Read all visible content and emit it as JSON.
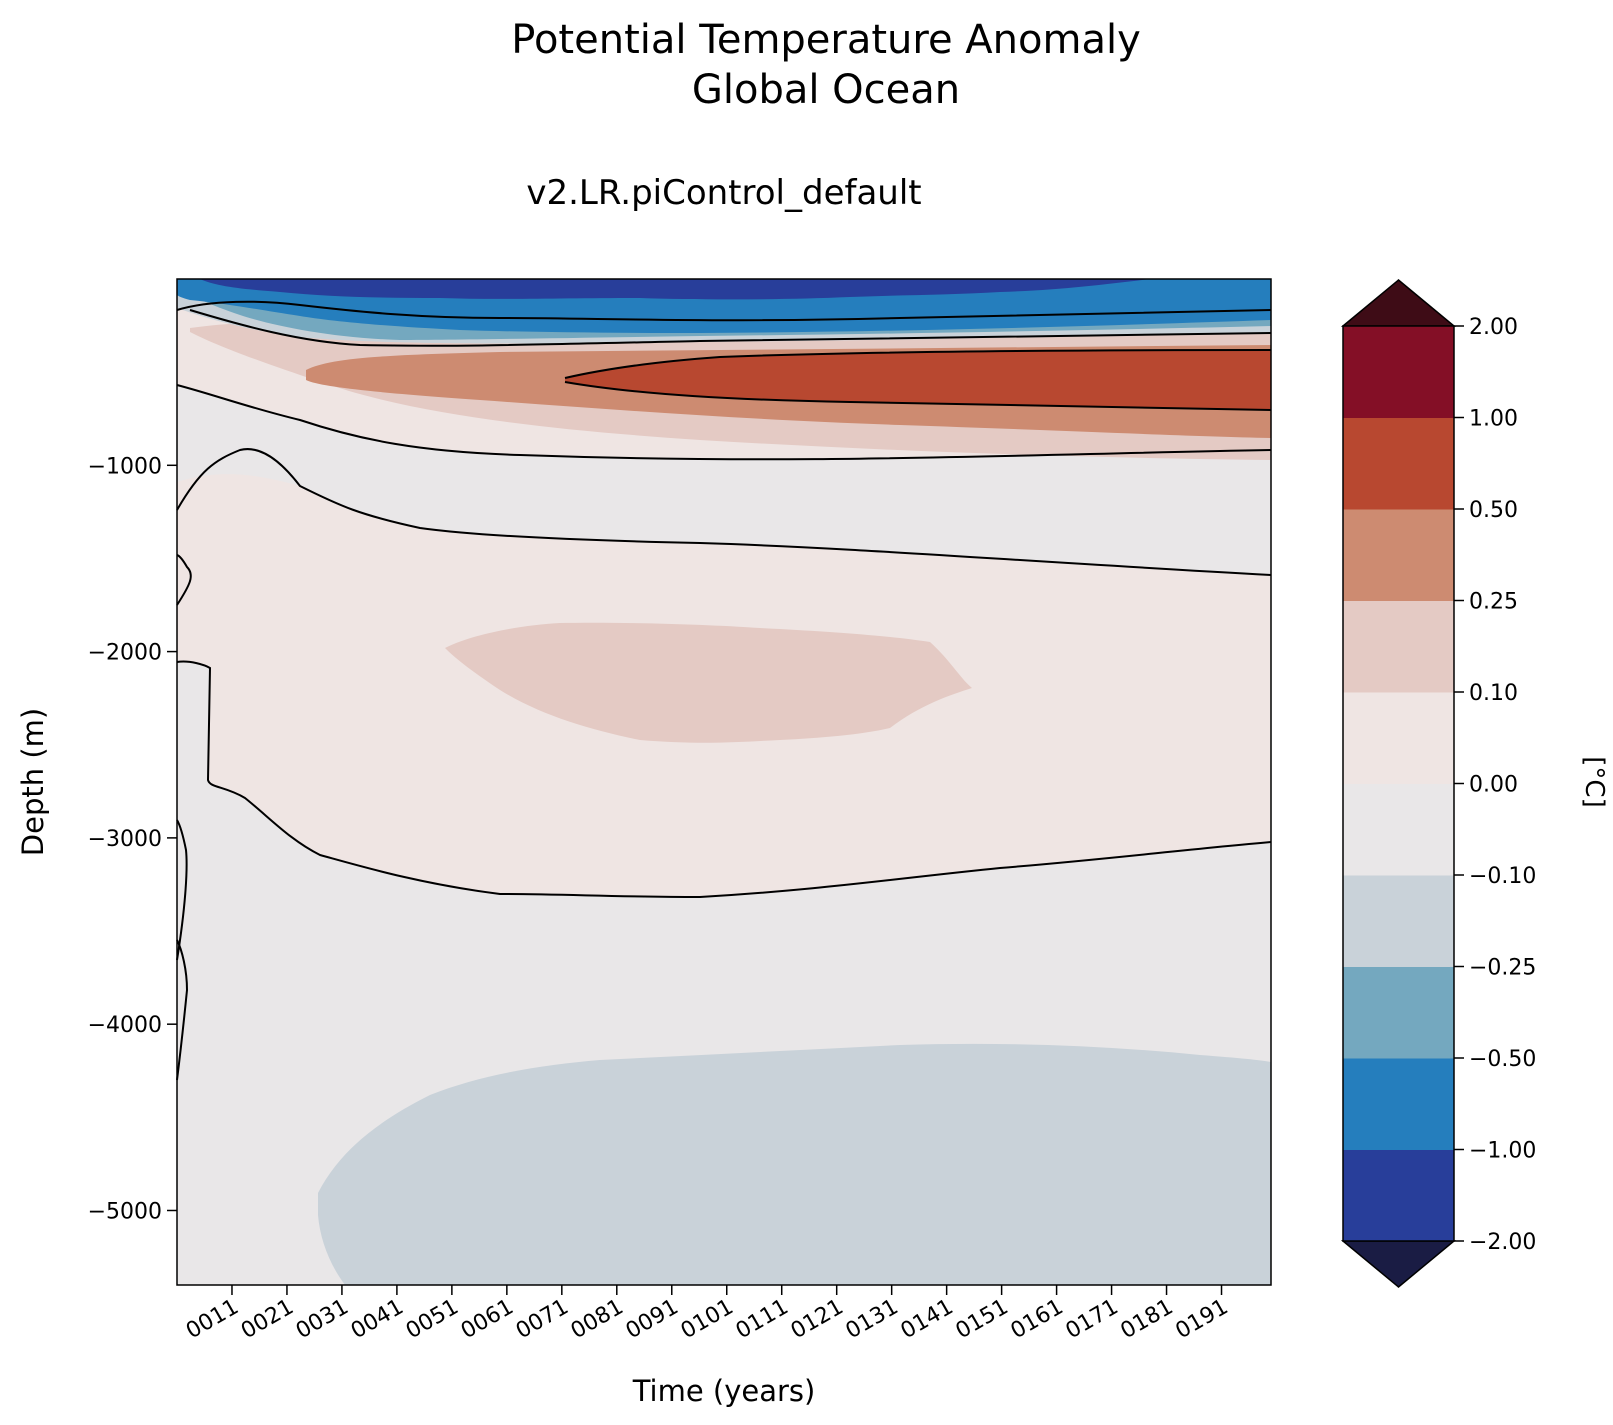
{
  "figure": {
    "title_line1": "Potential Temperature Anomaly",
    "title_line2": "Global Ocean",
    "subtitle": "v2.LR.piControl_default"
  },
  "chart_data": {
    "type": "heatmap",
    "subtype": "filled-contour depth-time section",
    "title": "Potential Temperature Anomaly / Global Ocean",
    "subtitle": "v2.LR.piControl_default",
    "xlabel": "Time (years)",
    "ylabel": "Depth (m)",
    "xlim": [
      1,
      200
    ],
    "ylim": [
      -5400,
      0
    ],
    "x_ticks": [
      {
        "value": 11,
        "label": "0011"
      },
      {
        "value": 21,
        "label": "0021"
      },
      {
        "value": 31,
        "label": "0031"
      },
      {
        "value": 41,
        "label": "0041"
      },
      {
        "value": 51,
        "label": "0051"
      },
      {
        "value": 61,
        "label": "0061"
      },
      {
        "value": 71,
        "label": "0071"
      },
      {
        "value": 81,
        "label": "0081"
      },
      {
        "value": 91,
        "label": "0091"
      },
      {
        "value": 101,
        "label": "0101"
      },
      {
        "value": 111,
        "label": "0111"
      },
      {
        "value": 121,
        "label": "0121"
      },
      {
        "value": 131,
        "label": "0131"
      },
      {
        "value": 141,
        "label": "0141"
      },
      {
        "value": 151,
        "label": "0151"
      },
      {
        "value": 161,
        "label": "0161"
      },
      {
        "value": 171,
        "label": "0171"
      },
      {
        "value": 181,
        "label": "0181"
      },
      {
        "value": 191,
        "label": "0191"
      }
    ],
    "y_ticks": [
      {
        "value": -1000,
        "label": "−1000"
      },
      {
        "value": -2000,
        "label": "−2000"
      },
      {
        "value": -3000,
        "label": "−3000"
      },
      {
        "value": -4000,
        "label": "−4000"
      },
      {
        "value": -5000,
        "label": "−5000"
      }
    ],
    "colorbar": {
      "label": "[°C]",
      "levels": [
        -2.0,
        -1.0,
        -0.5,
        -0.25,
        -0.1,
        0.0,
        0.1,
        0.25,
        0.5,
        1.0,
        2.0
      ],
      "level_labels": [
        "−2.00",
        "−1.00",
        "−0.50",
        "−0.25",
        "−0.10",
        "0.00",
        "0.10",
        "0.25",
        "0.50",
        "1.00",
        "2.00"
      ],
      "colors": [
        "#283e9a",
        "#257ebd",
        "#74a8bf",
        "#c9d2d9",
        "#e9e7e8",
        "#efe5e3",
        "#e4cac4",
        "#cd8b71",
        "#b84830",
        "#840f26"
      ],
      "under_color": "#1a1c44",
      "over_color": "#3e0c16",
      "extend": "both"
    },
    "regions": [
      {
        "range": "-2.00 to -1.00",
        "desc": "thin band 0-80 m, years 1-150"
      },
      {
        "range": "-1.00 to -0.50",
        "desc": "upper ocean 0-250 m, strongest years 1-200"
      },
      {
        "range": "-0.50 to -0.25",
        "desc": "thin layer ~150-330 m"
      },
      {
        "range": "0.50 to 1.00",
        "desc": "warm core ~400-700 m, years 75-200"
      },
      {
        "range": "0.25 to 0.50",
        "desc": "warm band ~300-850 m, years 25-200"
      },
      {
        "range": "0.10 to 0.25",
        "desc": "envelope ~250-950 m and mid-depth patch ~1800-2450 m, years 50-145"
      },
      {
        "range": "0.00 to 0.10",
        "desc": "broad ~1000-3200 m layer"
      },
      {
        "range": "-0.10 to 0.00",
        "desc": "deep layer ~3000-5400 m"
      },
      {
        "range": "-0.25 to -0.10",
        "desc": "abyssal cold patch below ~4100 m, years 27-200"
      }
    ]
  }
}
